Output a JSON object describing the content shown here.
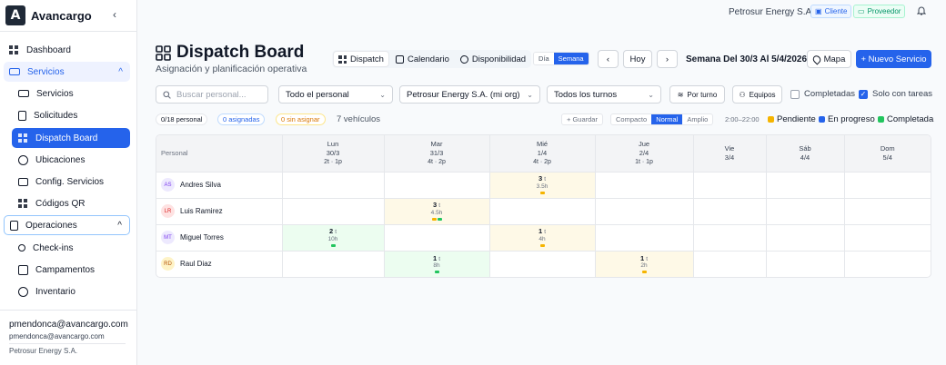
{
  "brand": {
    "name": "Avancargo",
    "logo_letter": "A"
  },
  "sidebar": {
    "items": [
      {
        "label": "Dashboard",
        "name": "sidebar-item-dashboard",
        "icon": "grid-icon"
      },
      {
        "label": "Servicios",
        "name": "sidebar-group-servicios",
        "icon": "truck-icon"
      },
      {
        "label": "Servicios",
        "name": "sidebar-item-servicios",
        "icon": "truck-icon"
      },
      {
        "label": "Solicitudes",
        "name": "sidebar-item-solicitudes",
        "icon": "document-icon"
      },
      {
        "label": "Dispatch Board",
        "name": "sidebar-item-dispatch-board",
        "icon": "grid-icon"
      },
      {
        "label": "Ubicaciones",
        "name": "sidebar-item-ubicaciones",
        "icon": "map-pin-icon"
      },
      {
        "label": "Config. Servicios",
        "name": "sidebar-item-config-servicios",
        "icon": "briefcase-icon"
      },
      {
        "label": "Códigos QR",
        "name": "sidebar-item-codigos-qr",
        "icon": "qr-icon"
      },
      {
        "label": "Operaciones",
        "name": "sidebar-group-operaciones",
        "icon": "clipboard-icon"
      },
      {
        "label": "Check-ins",
        "name": "sidebar-item-check-ins",
        "icon": "user-check-icon"
      },
      {
        "label": "Campamentos",
        "name": "sidebar-item-campamentos",
        "icon": "building-icon"
      },
      {
        "label": "Inventario",
        "name": "sidebar-item-inventario",
        "icon": "boxes-icon"
      }
    ],
    "user": {
      "email": "pmendonca@avancargo.com",
      "email_secondary": "pmendonca@avancargo.com",
      "org": "Petrosur Energy S.A."
    }
  },
  "topbar": {
    "org": "Petrosur Energy S.A.",
    "badge_cliente": "Cliente",
    "badge_proveedor": "Proveedor"
  },
  "header": {
    "title": "Dispatch Board",
    "subtitle": "Asignación y planificación operativa",
    "tabs": [
      "Dispatch",
      "Calendario",
      "Disponibilidad"
    ],
    "range": [
      "Día",
      "Semana"
    ],
    "today": "Hoy",
    "prev": "‹",
    "next": "›",
    "week_label": "Semana Del 30/3 Al 5/4/2026",
    "map": "Mapa",
    "new_service": "+ Nuevo Servicio"
  },
  "filters": {
    "search_placeholder": "Buscar personal...",
    "personnel": "Todo el personal",
    "org": "Petrosur Energy S.A. (mi org)",
    "shifts": "Todos los turnos",
    "by_shift": "Por turno",
    "teams": "Equipos",
    "completed": "Completadas",
    "only_tasks": "Solo con tareas"
  },
  "stats": {
    "personnel": "0/18 personal",
    "assigned": "0 asignadas",
    "unassigned": "0 sin asignar",
    "vehicles": "7 vehículos",
    "save": "+ Guardar",
    "density": [
      "Compacto",
      "Normal",
      "Amplio"
    ],
    "hours": "2:00–22:00"
  },
  "legend": [
    {
      "label": "Pendiente",
      "color": "#f5b400"
    },
    {
      "label": "En progreso",
      "color": "#2563eb"
    },
    {
      "label": "Completada",
      "color": "#22c55e"
    }
  ],
  "board": {
    "person_header": "Personal",
    "days": [
      {
        "name": "Lun",
        "date": "30/3",
        "stat": "2t · 1p"
      },
      {
        "name": "Mar",
        "date": "31/3",
        "stat": "4t · 2p"
      },
      {
        "name": "Mié",
        "date": "1/4",
        "stat": "4t · 2p"
      },
      {
        "name": "Jue",
        "date": "2/4",
        "stat": "1t · 1p"
      },
      {
        "name": "Vie",
        "date": "3/4",
        "stat": ""
      },
      {
        "name": "Sáb",
        "date": "4/4",
        "stat": ""
      },
      {
        "name": "Dom",
        "date": "5/4",
        "stat": ""
      }
    ],
    "rows": [
      {
        "initials": "AS",
        "name": "Andres Silva",
        "avatar_bg": "#ede9fe",
        "avatar_fg": "#7c3aed",
        "cells": [
          null,
          null,
          {
            "count": "3",
            "unit": "t",
            "hours": "3.5h",
            "bg": "#fef9e7",
            "dots": [
              "#f5b400"
            ]
          },
          null,
          null,
          null,
          null
        ]
      },
      {
        "initials": "LR",
        "name": "Luis Ramirez",
        "avatar_bg": "#fee2e2",
        "avatar_fg": "#dc2626",
        "cells": [
          null,
          {
            "count": "3",
            "unit": "t",
            "hours": "4.5h",
            "bg": "#fef9e7",
            "dots": [
              "#f5b400",
              "#22c55e"
            ]
          },
          null,
          null,
          null,
          null,
          null
        ]
      },
      {
        "initials": "MT",
        "name": "Miguel Torres",
        "avatar_bg": "#ede9fe",
        "avatar_fg": "#7c3aed",
        "cells": [
          {
            "count": "2",
            "unit": "t",
            "hours": "10h",
            "bg": "#ecfdf0",
            "dots": [
              "#22c55e"
            ]
          },
          null,
          {
            "count": "1",
            "unit": "t",
            "hours": "4h",
            "bg": "#fef9e7",
            "dots": [
              "#f5b400"
            ]
          },
          null,
          null,
          null,
          null
        ]
      },
      {
        "initials": "RD",
        "name": "Raul Diaz",
        "avatar_bg": "#fef3c7",
        "avatar_fg": "#b45309",
        "cells": [
          null,
          {
            "count": "1",
            "unit": "t",
            "hours": "8h",
            "bg": "#ecfdf0",
            "dots": [
              "#22c55e"
            ]
          },
          null,
          {
            "count": "1",
            "unit": "t",
            "hours": "2h",
            "bg": "#fef9e7",
            "dots": [
              "#f5b400"
            ]
          },
          null,
          null,
          null
        ]
      }
    ]
  }
}
